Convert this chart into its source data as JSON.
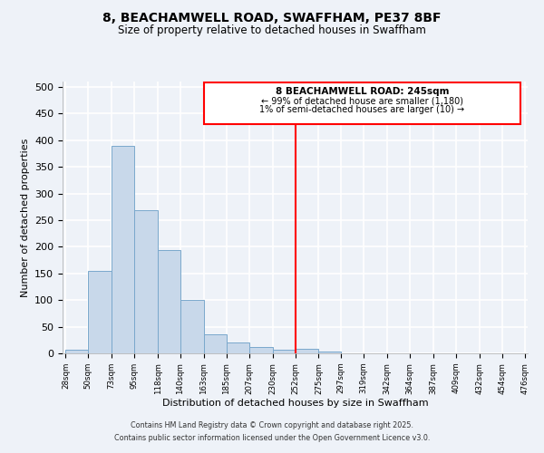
{
  "title": "8, BEACHAMWELL ROAD, SWAFFHAM, PE37 8BF",
  "subtitle": "Size of property relative to detached houses in Swaffham",
  "xlabel": "Distribution of detached houses by size in Swaffham",
  "ylabel": "Number of detached properties",
  "bar_color": "#c8d8ea",
  "bar_edge_color": "#7aa8cc",
  "background_color": "#eef2f8",
  "grid_color": "#ffffff",
  "ylim": [
    0,
    510
  ],
  "bin_edges": [
    28,
    50,
    73,
    95,
    118,
    140,
    163,
    185,
    207,
    230,
    252,
    275,
    297,
    319,
    342,
    364,
    387,
    409,
    432,
    454,
    476
  ],
  "bin_labels": [
    "28sqm",
    "50sqm",
    "73sqm",
    "95sqm",
    "118sqm",
    "140sqm",
    "163sqm",
    "185sqm",
    "207sqm",
    "230sqm",
    "252sqm",
    "275sqm",
    "297sqm",
    "319sqm",
    "342sqm",
    "364sqm",
    "387sqm",
    "409sqm",
    "432sqm",
    "454sqm",
    "476sqm"
  ],
  "counts": [
    6,
    155,
    390,
    268,
    193,
    101,
    36,
    20,
    12,
    7,
    8,
    3,
    0,
    0,
    0,
    0,
    0,
    0,
    0,
    0
  ],
  "vline_x": 252,
  "annotation_title": "8 BEACHAMWELL ROAD: 245sqm",
  "annotation_line1": "← 99% of detached hous​e are smaller (1,180)",
  "annotation_line2": "1% of semi-detached houses are larger (10) →",
  "footer_line1": "Contains HM Land Registry data © Crown copyright and database right 2025.",
  "footer_line2": "Contains public sector information licensed under the Open Government Licence v3.0."
}
